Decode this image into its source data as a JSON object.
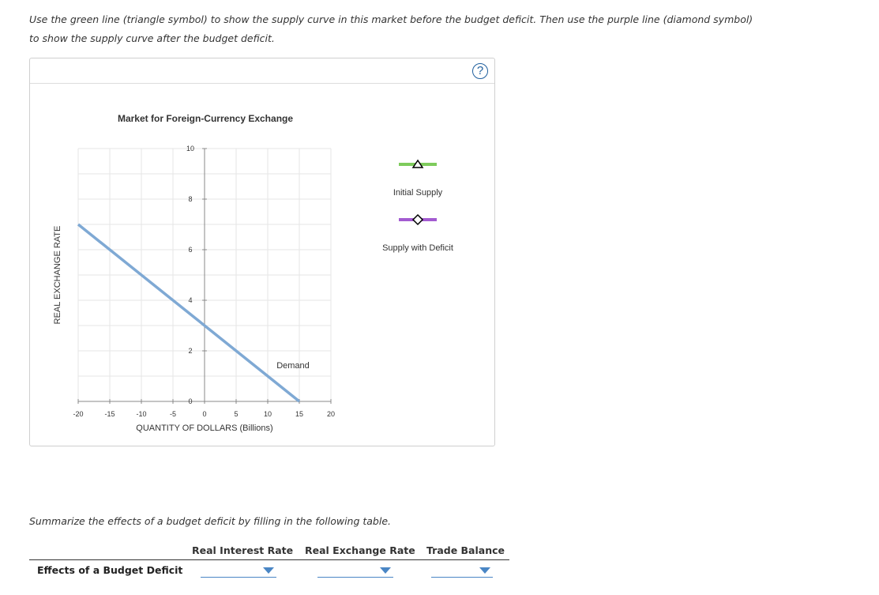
{
  "instructions": "Use the green line (triangle symbol) to show the supply curve in this market before the budget deficit. Then use the purple line (diamond symbol) to show the supply curve after the budget deficit.",
  "help_label": "?",
  "chart_data": {
    "type": "line",
    "title": "Market for Foreign-Currency Exchange",
    "xlabel": "QUANTITY OF DOLLARS (Billions)",
    "ylabel": "REAL EXCHANGE RATE",
    "xlim": [
      -20,
      20
    ],
    "ylim": [
      0,
      10
    ],
    "x_ticks": [
      -20,
      -15,
      -10,
      -5,
      0,
      5,
      10,
      15,
      20
    ],
    "y_ticks": [
      0,
      2,
      4,
      6,
      8,
      10
    ],
    "grid": true,
    "series": [
      {
        "name": "Demand",
        "x": [
          -20,
          15
        ],
        "y": [
          7,
          0
        ],
        "color": "#7fa9d4"
      }
    ],
    "legend_tools": [
      {
        "label": "Initial Supply",
        "symbol": "triangle",
        "color": "#7ecb5c"
      },
      {
        "label": "Supply with Deficit",
        "symbol": "diamond",
        "color": "#a35bd1"
      }
    ]
  },
  "summary": {
    "prompt": "Summarize the effects of a budget deficit by filling in the following table.",
    "columns": [
      "Real Interest Rate",
      "Real Exchange Rate",
      "Trade Balance"
    ],
    "row_label": "Effects of a Budget Deficit",
    "selections": [
      "",
      "",
      ""
    ]
  }
}
